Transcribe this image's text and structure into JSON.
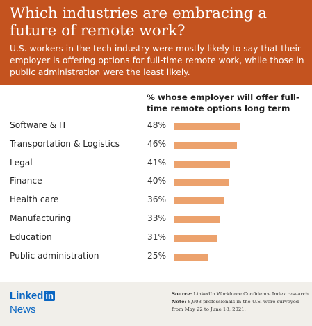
{
  "header": {
    "title": "Which industries are embracing a future of remote work?",
    "subtitle": "U.S. workers in the tech industry were mostly likely to say that their employer is offering options for full-time remote work, while those in public administration were the least likely."
  },
  "colors": {
    "header_bg": "#c4531f",
    "bar": "#eca26d",
    "footer_bg": "#f1efea",
    "brand": "#0a66c2"
  },
  "chart_data": {
    "type": "bar",
    "orientation": "horizontal",
    "measure_label": "% whose employer will offer full-time remote options long term",
    "categories": [
      "Software & IT",
      "Transportation & Logistics",
      "Legal",
      "Finance",
      "Health care",
      "Manufacturing",
      "Education",
      "Public administration"
    ],
    "values": [
      48,
      46,
      41,
      40,
      36,
      33,
      31,
      25
    ],
    "value_labels": [
      "48%",
      "46%",
      "41%",
      "40%",
      "36%",
      "33%",
      "31%",
      "25%"
    ],
    "value_suffix": "%",
    "grid": false,
    "legend": "none"
  },
  "footer": {
    "brand_text": "Linked",
    "brand_box": "in",
    "news": "News",
    "source_label": "Source:",
    "source_text": "LinkedIn Workforce Confidence Index research",
    "note_label": "Note:",
    "note_text": "8,908 professionals in the U.S. were surveyed from May 22 to June 18, 2021."
  }
}
